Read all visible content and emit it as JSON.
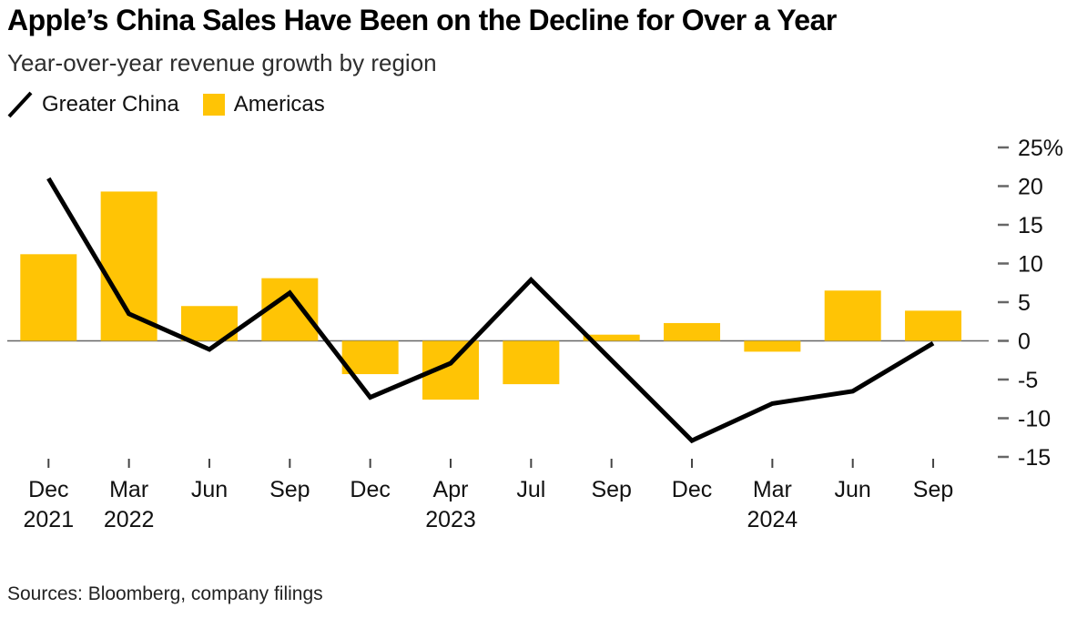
{
  "header": {
    "title": "Apple’s China Sales Have Been on the Decline for Over a Year",
    "subtitle": "Year-over-year revenue growth by region"
  },
  "footer": {
    "sources": "Sources: Bloomberg, company filings"
  },
  "colors": {
    "bar_accent": "#FFC405",
    "line_series": "#000000",
    "axis_line": "#666666",
    "tick_mark": "#444444",
    "axis_text": "#111111"
  },
  "chart_data": {
    "type": "bar+line",
    "title": "Apple’s China Sales Have Been on the Decline for Over a Year",
    "subtitle": "Year-over-year revenue growth by region",
    "y_unit": "%",
    "ylim": [
      -15,
      25
    ],
    "y_ticks": [
      25,
      20,
      15,
      10,
      5,
      0,
      -5,
      -10,
      -15
    ],
    "grid": false,
    "legend_position": "top-left",
    "categories": [
      {
        "label": "Dec",
        "year": "2021"
      },
      {
        "label": "Mar",
        "year": "2022"
      },
      {
        "label": "Jun"
      },
      {
        "label": "Sep"
      },
      {
        "label": "Dec"
      },
      {
        "label": "Apr",
        "year": "2023"
      },
      {
        "label": "Jul"
      },
      {
        "label": "Sep"
      },
      {
        "label": "Dec"
      },
      {
        "label": "Mar",
        "year": "2024"
      },
      {
        "label": "Jun"
      },
      {
        "label": "Sep"
      }
    ],
    "series": [
      {
        "name": "Greater China",
        "type": "line",
        "color": "#000000",
        "values": [
          21.0,
          3.5,
          -1.1,
          6.2,
          -7.3,
          -2.9,
          7.9,
          -2.5,
          -12.9,
          -8.1,
          -6.5,
          -0.3
        ]
      },
      {
        "name": "Americas",
        "type": "bar",
        "color": "#FFC405",
        "values": [
          11.2,
          19.3,
          4.5,
          8.1,
          -4.3,
          -7.6,
          -5.6,
          0.8,
          2.3,
          -1.4,
          6.5,
          3.9
        ]
      }
    ]
  }
}
